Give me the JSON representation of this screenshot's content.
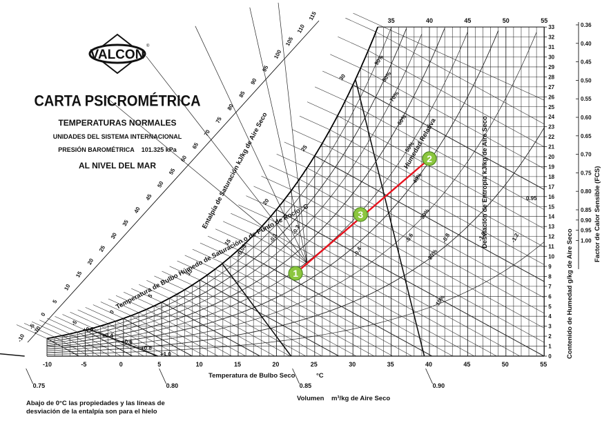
{
  "header": {
    "logo_text": "VALCON",
    "logo_mark": "®",
    "title": "CARTA PSICROMÉTRICA",
    "subtitle": "TEMPERATURAS NORMALES",
    "units": "UNIDADES DEL SISTEMA INTERNACIONAL",
    "pressure_label": "PRESIÓN BAROMÉTRICA",
    "pressure_value": "101.325 kPa",
    "level": "AL NIVEL DEL MAR"
  },
  "footnote": {
    "line1": "Abajo de 0°C las propiedades y las líneas de",
    "line2": "desviación de la entalpía son para el hielo"
  },
  "chart_data": {
    "type": "scatter",
    "title": "CARTA PSICROMÉTRICA",
    "xlabel": "Temperatura de Bulbo Seco",
    "xlabel_unit": "°C",
    "ylabel": "Contenido de Humedad g/kg de Aire Seco",
    "ylabel_right": "Factor de Calor Sensible (FCS)",
    "xlim": [
      -10,
      55
    ],
    "ylim": [
      0,
      33
    ],
    "grid": true,
    "x_ticks": [
      "-10",
      "-5",
      "0",
      "5",
      "10",
      "15",
      "20",
      "25",
      "30",
      "35",
      "40",
      "45",
      "50",
      "55"
    ],
    "top_ticks": [
      "35",
      "40",
      "45",
      "50",
      "55"
    ],
    "y_ticks": [
      "0",
      "1",
      "2",
      "3",
      "4",
      "5",
      "6",
      "7",
      "8",
      "9",
      "10",
      "11",
      "12",
      "13",
      "14",
      "15",
      "16",
      "17",
      "18",
      "19",
      "20",
      "21",
      "22",
      "23",
      "24",
      "25",
      "26",
      "27",
      "28",
      "29",
      "30",
      "31",
      "32",
      "33"
    ],
    "shf_ticks": [
      "0.36",
      "0.40",
      "0.45",
      "0.50",
      "0.55",
      "0.60",
      "0.65",
      "0.70",
      "0.75",
      "0.80",
      "0.85",
      "0.90",
      "0.95",
      "1.00"
    ],
    "shf_values": [
      0.36,
      0.4,
      0.45,
      0.5,
      0.55,
      0.6,
      0.65,
      0.7,
      0.75,
      0.8,
      0.85,
      0.9,
      0.95,
      1.0
    ],
    "volume_label": "Volumen",
    "volume_unit": "m³/kg de Aire Seco",
    "volume_ticks": [
      "0.75",
      "0.80",
      "0.85",
      "0.90"
    ],
    "volume_values": [
      0.75,
      0.8,
      0.85,
      0.9
    ],
    "enthalpy_label": "Entalpía de Saturación   kJ/kg de Aire Seco",
    "enthalpy_ticks": [
      "-10",
      "-5",
      "0",
      "5",
      "10",
      "15",
      "20",
      "25",
      "30",
      "35",
      "40",
      "45",
      "50",
      "55",
      "60",
      "65",
      "70",
      "75",
      "80",
      "85",
      "90",
      "95",
      "100",
      "105",
      "110",
      "115"
    ],
    "saturation_label": "Temperatura de Bulbo Húmedo de Saturación o de Punto de Rocío   °C",
    "saturation_ticks": [
      "-10",
      "-5",
      "0",
      "5",
      "10",
      "15",
      "20",
      "25",
      "30"
    ],
    "rh_label": "Humedad Relativa",
    "rh_ticks": [
      "10%",
      "20%",
      "30%",
      "40%",
      "50%",
      "60%",
      "70%",
      "80%",
      "90%"
    ],
    "rh_values": [
      10,
      20,
      30,
      40,
      50,
      60,
      70,
      80,
      90
    ],
    "entropy_label": "Desviación de Entropía   kJ/kg de Aire Seco",
    "dev_ticks_pos": [
      "+0.2",
      "+0.4",
      "+0.6",
      "+0.8",
      "+1.0"
    ],
    "dev_ticks_neg": [
      "-0.05",
      "-0.1",
      "-0.2",
      "-0.4",
      "-0.6",
      "-0.8",
      "-1.0",
      "-1.2"
    ],
    "shf_inner_label": "0.95",
    "process_points": [
      {
        "label": "1",
        "x": 22.5,
        "y": 8.3
      },
      {
        "label": "3",
        "x": 31,
        "y": 14.2
      },
      {
        "label": "2",
        "x": 40,
        "y": 19.8
      }
    ],
    "process_line": {
      "from": "1",
      "to": "2",
      "color": "#e8121d"
    },
    "marker_color": "#8cc63f"
  }
}
